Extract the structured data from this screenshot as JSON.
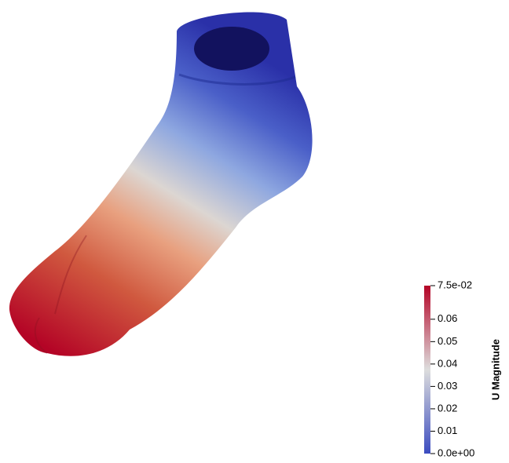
{
  "colorbar": {
    "title": "U Magnitude",
    "lim": [
      0,
      0.075
    ],
    "ticks": [
      {
        "value": 0,
        "label": "0.0e+00"
      },
      0.01,
      0.02,
      0.03,
      0.04,
      0.05,
      0.06,
      {
        "value": 0.075,
        "label": "7.5e-02"
      }
    ]
  }
}
